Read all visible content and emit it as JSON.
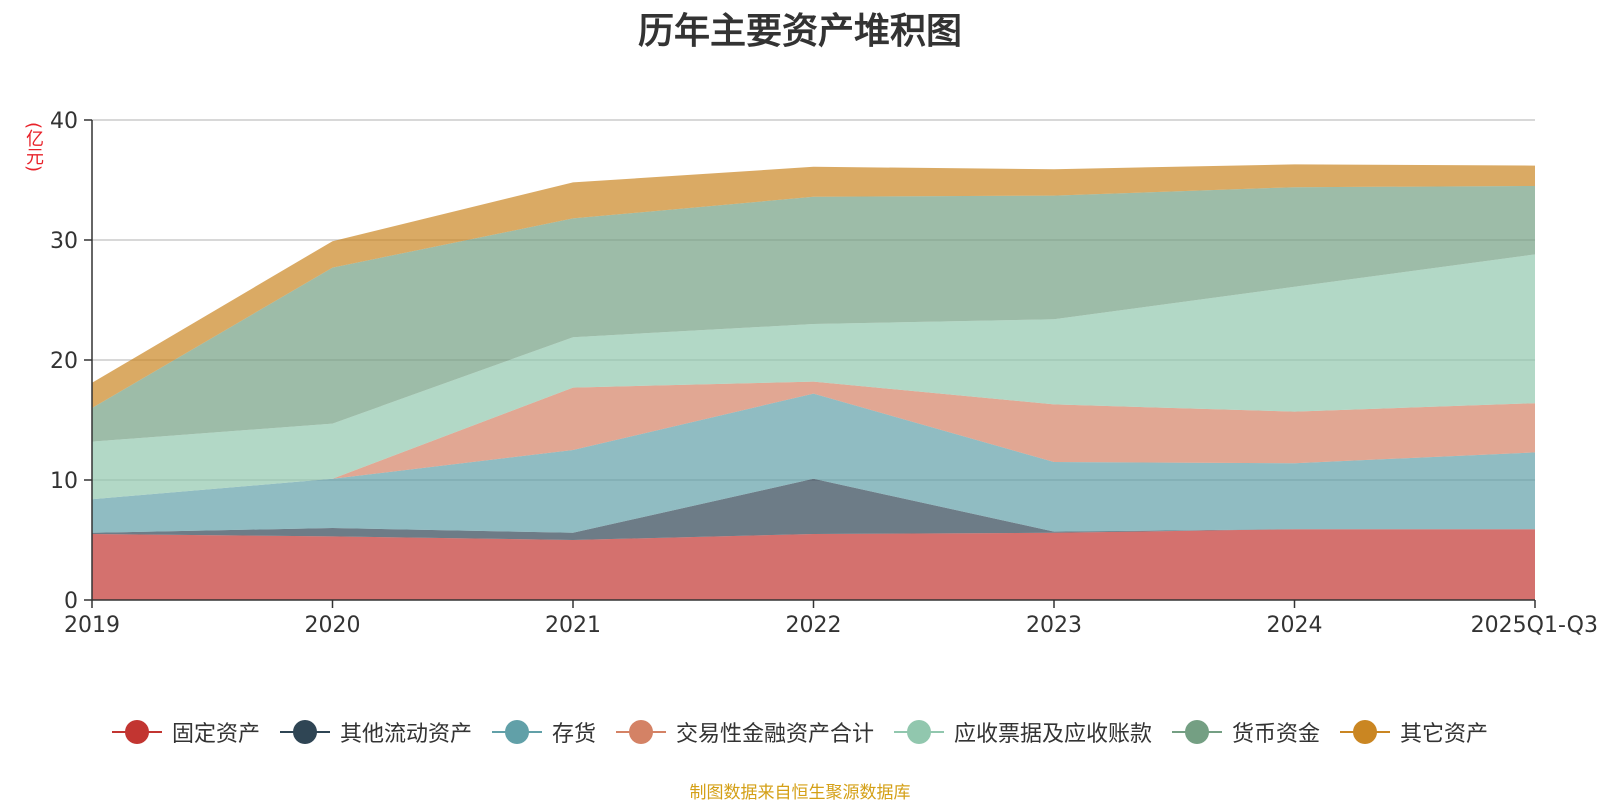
{
  "chart_data": {
    "type": "area",
    "stacked": true,
    "title": "历年主要资产堆积图",
    "ylabel": "(亿元)",
    "ylim": [
      0,
      40
    ],
    "yticks": [
      0,
      10,
      20,
      30,
      40
    ],
    "categories": [
      "2019",
      "2020",
      "2021",
      "2022",
      "2023",
      "2024",
      "2025Q1-Q3"
    ],
    "grid": true,
    "legend_position": "bottom",
    "series": [
      {
        "name": "固定资产",
        "color": "#c23531",
        "values": [
          5.5,
          5.3,
          5.0,
          5.5,
          5.6,
          5.9,
          5.9
        ]
      },
      {
        "name": "其他流动资产",
        "color": "#2f4554",
        "values": [
          0.1,
          0.7,
          0.6,
          4.6,
          0.1,
          0.0,
          0.0
        ]
      },
      {
        "name": "存货",
        "color": "#61a0a8",
        "values": [
          2.8,
          4.1,
          6.9,
          7.1,
          5.8,
          5.5,
          6.4
        ]
      },
      {
        "name": "交易性金融资产合计",
        "color": "#d48265",
        "values": [
          0.0,
          0.0,
          5.2,
          1.0,
          4.8,
          4.3,
          4.1
        ]
      },
      {
        "name": "应收票据及应收账款",
        "color": "#91c7ae",
        "values": [
          4.8,
          4.6,
          4.2,
          4.8,
          7.1,
          10.4,
          12.4
        ]
      },
      {
        "name": "货币资金",
        "color": "#749f83",
        "values": [
          2.8,
          13.0,
          9.9,
          10.6,
          10.3,
          8.3,
          5.7
        ]
      },
      {
        "name": "其它资产",
        "color": "#ca8622",
        "values": [
          2.1,
          2.2,
          3.0,
          2.5,
          2.2,
          1.9,
          1.7
        ]
      }
    ]
  },
  "source_note": "制图数据来自恒生聚源数据库"
}
